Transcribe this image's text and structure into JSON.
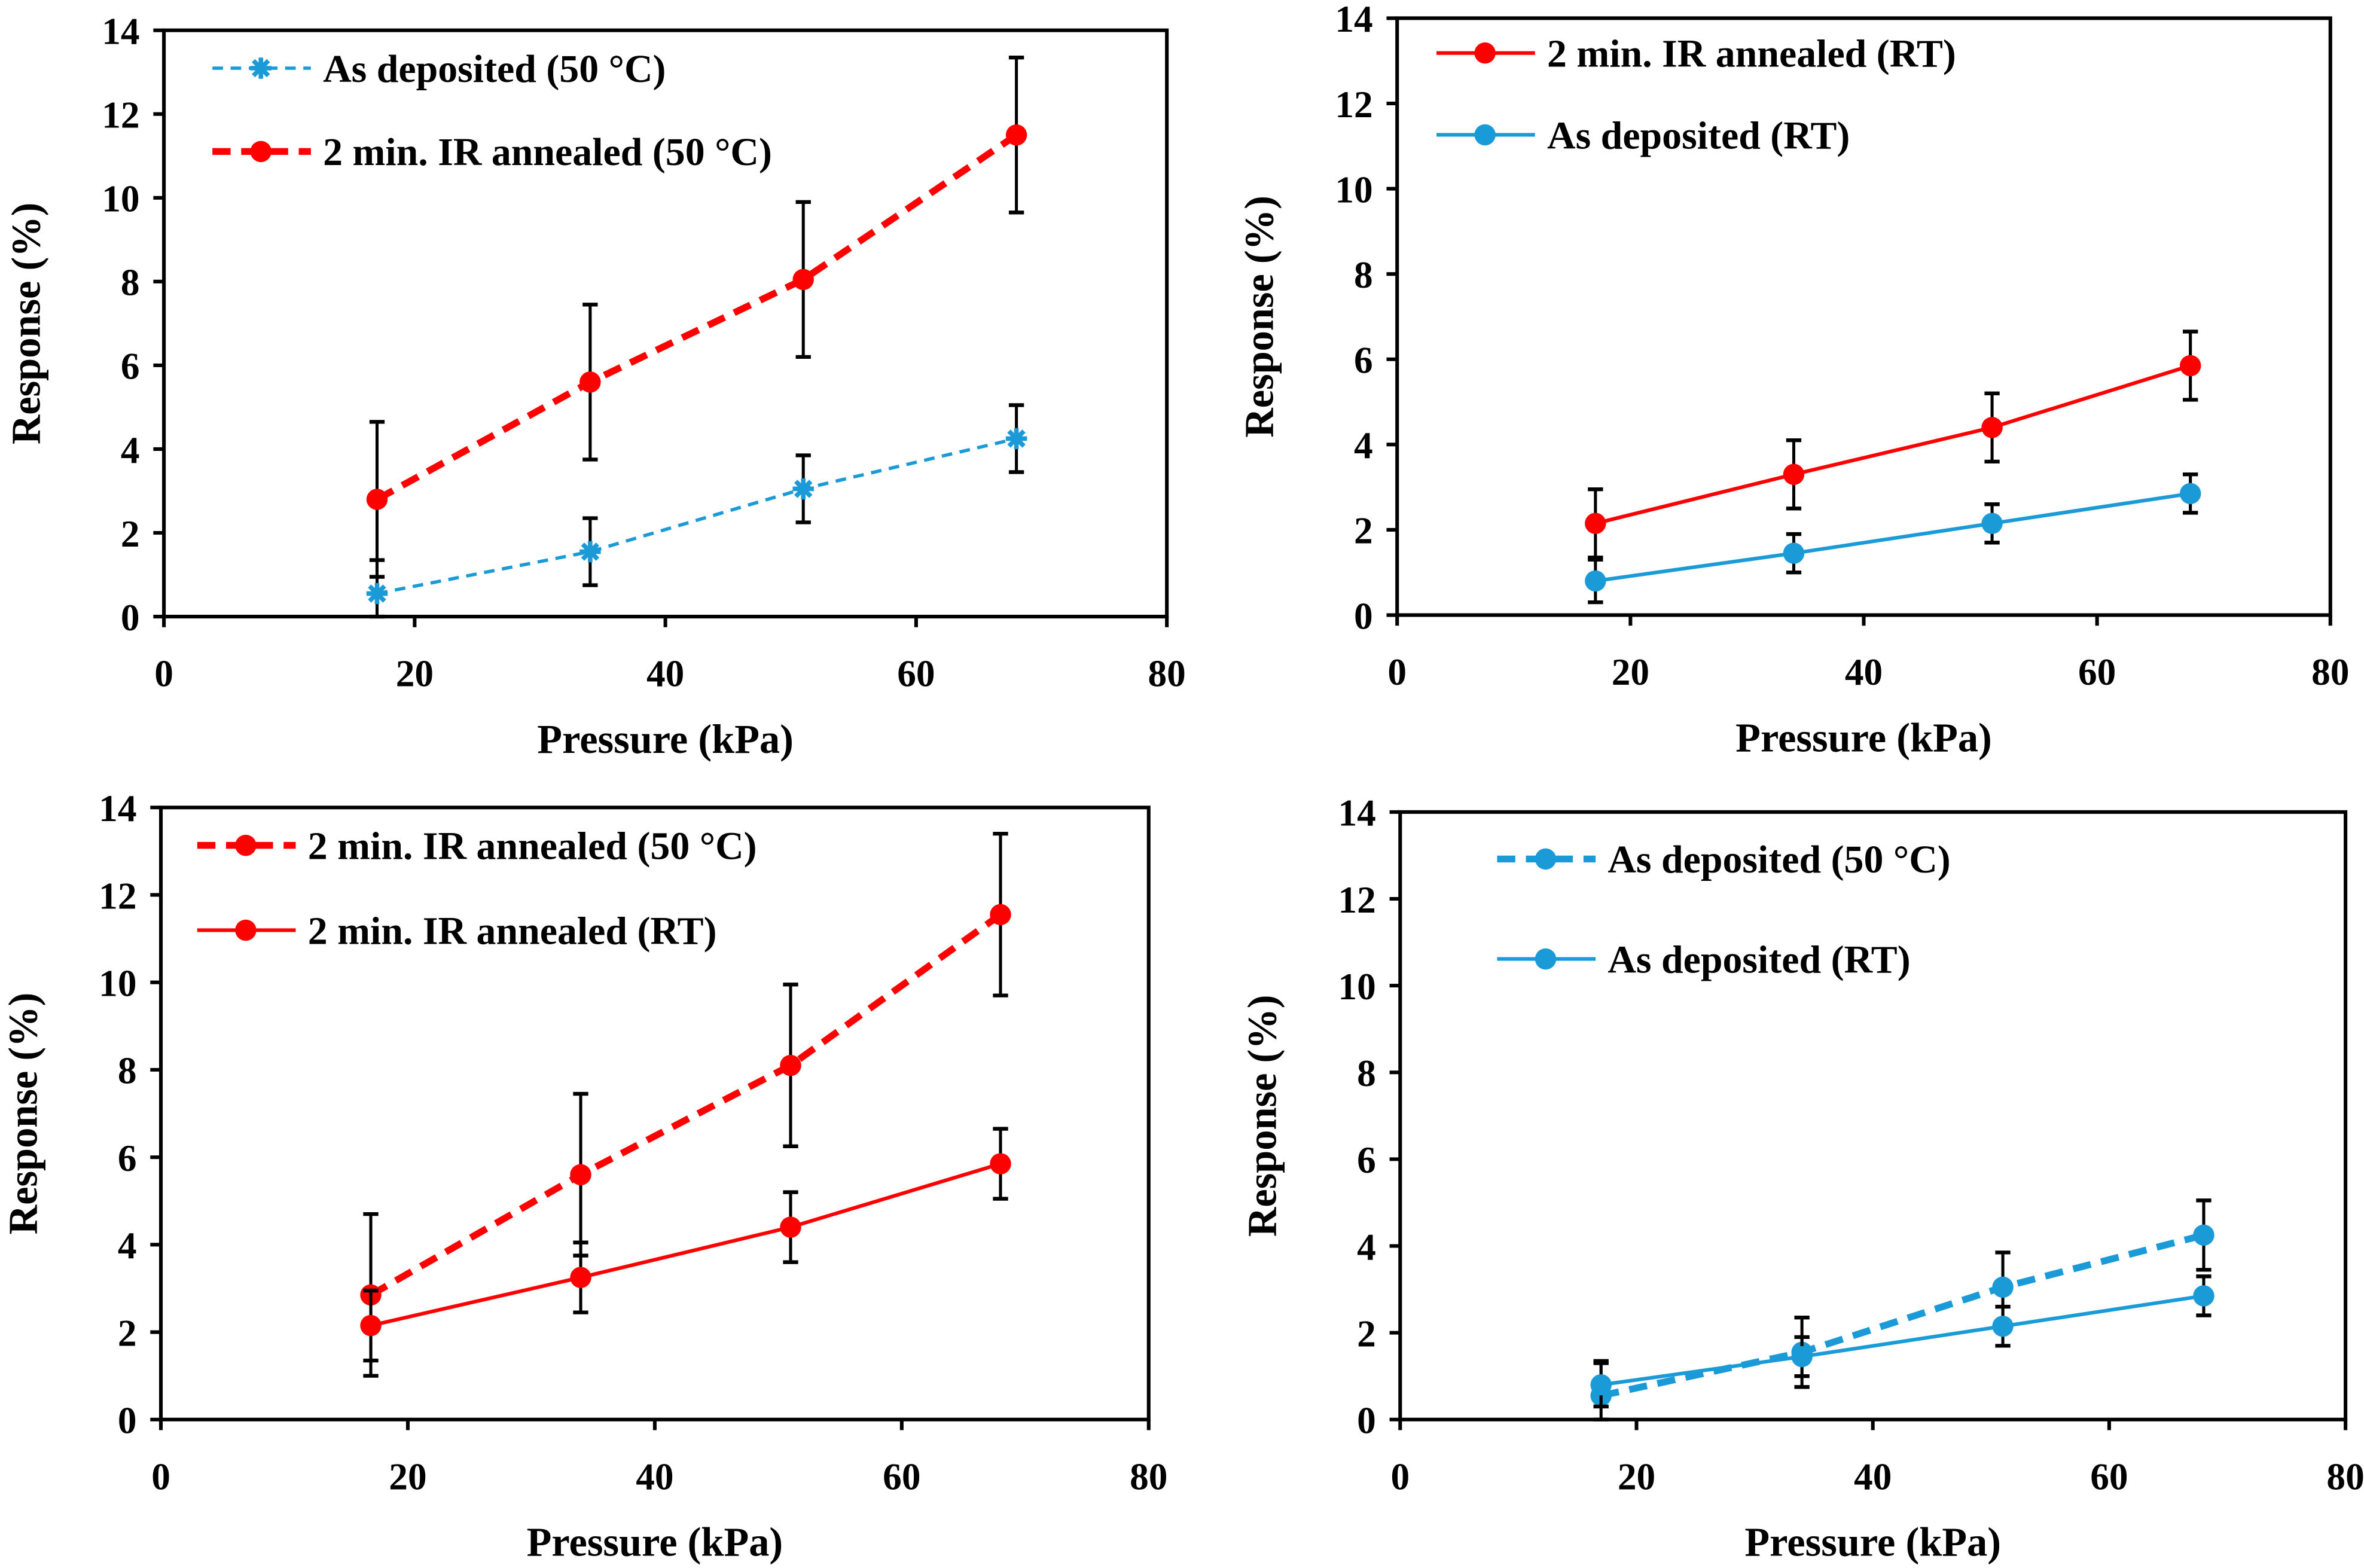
{
  "colors": {
    "red": "#ff0000",
    "blue": "#1a9bd7",
    "axis": "#000000"
  },
  "chart_data": [
    {
      "type": "line",
      "title": "",
      "xlabel": "Pressure (kPa)",
      "ylabel": "Response (%)",
      "xlim": [
        0,
        80
      ],
      "ylim": [
        0,
        14
      ],
      "xticks": [
        "0",
        "20",
        "40",
        "60",
        "80"
      ],
      "yticks": [
        "0",
        "2",
        "4",
        "6",
        "8",
        "10",
        "12",
        "14"
      ],
      "grid": false,
      "legend_position": "top-left",
      "series": [
        {
          "name": "As deposited (50 °C)",
          "color": "#1a9bd7",
          "line": "dashed-thin",
          "marker": "asterisk",
          "x": [
            17,
            34,
            51,
            68
          ],
          "y": [
            0.55,
            1.55,
            3.05,
            4.25
          ],
          "err": [
            0.8,
            0.8,
            0.8,
            0.8
          ]
        },
        {
          "name": "2 min. IR annealed (50 °C)",
          "color": "#ff0000",
          "line": "dashed-thick",
          "marker": "circle",
          "x": [
            17,
            34,
            51,
            68
          ],
          "y": [
            2.8,
            5.6,
            8.05,
            11.5
          ],
          "err": [
            1.85,
            1.85,
            1.85,
            1.85
          ]
        }
      ]
    },
    {
      "type": "line",
      "title": "",
      "xlabel": "Pressure (kPa)",
      "ylabel": "Response (%)",
      "xlim": [
        0,
        80
      ],
      "ylim": [
        0,
        14
      ],
      "xticks": [
        "0",
        "20",
        "40",
        "60",
        "80"
      ],
      "yticks": [
        "0",
        "2",
        "4",
        "6",
        "8",
        "10",
        "12",
        "14"
      ],
      "grid": false,
      "legend_position": "top-left",
      "series": [
        {
          "name": "2 min. IR annealed (RT)",
          "color": "#ff0000",
          "line": "solid",
          "marker": "circle",
          "x": [
            17,
            34,
            51,
            68
          ],
          "y": [
            2.15,
            3.3,
            4.4,
            5.85
          ],
          "err": [
            0.8,
            0.8,
            0.8,
            0.8
          ]
        },
        {
          "name": "As deposited (RT)",
          "color": "#1a9bd7",
          "line": "solid",
          "marker": "circle",
          "x": [
            17,
            34,
            51,
            68
          ],
          "y": [
            0.8,
            1.45,
            2.15,
            2.85
          ],
          "err": [
            0.5,
            0.45,
            0.45,
            0.45
          ]
        }
      ]
    },
    {
      "type": "line",
      "title": "",
      "xlabel": "Pressure (kPa)",
      "ylabel": "Response (%)",
      "xlim": [
        0,
        80
      ],
      "ylim": [
        0,
        14
      ],
      "xticks": [
        "0",
        "20",
        "40",
        "60",
        "80"
      ],
      "yticks": [
        "0",
        "2",
        "4",
        "6",
        "8",
        "10",
        "12",
        "14"
      ],
      "grid": false,
      "legend_position": "top-left",
      "series": [
        {
          "name": "2 min. IR annealed (50 °C)",
          "color": "#ff0000",
          "line": "dashed-thick",
          "marker": "circle",
          "x": [
            17,
            34,
            51,
            68
          ],
          "y": [
            2.85,
            5.6,
            8.1,
            11.55
          ],
          "err": [
            1.85,
            1.85,
            1.85,
            1.85
          ]
        },
        {
          "name": "2 min. IR annealed (RT)",
          "color": "#ff0000",
          "line": "solid",
          "marker": "circle",
          "x": [
            17,
            34,
            51,
            68
          ],
          "y": [
            2.15,
            3.25,
            4.4,
            5.85
          ],
          "err": [
            0.8,
            0.8,
            0.8,
            0.8
          ]
        }
      ]
    },
    {
      "type": "line",
      "title": "",
      "xlabel": "Pressure (kPa)",
      "ylabel": "Response (%)",
      "xlim": [
        0,
        80
      ],
      "ylim": [
        0,
        14
      ],
      "xticks": [
        "0",
        "20",
        "40",
        "60",
        "80"
      ],
      "yticks": [
        "0",
        "2",
        "4",
        "6",
        "8",
        "10",
        "12",
        "14"
      ],
      "grid": false,
      "legend_position": "top-left",
      "series": [
        {
          "name": "As deposited (50 °C)",
          "color": "#1a9bd7",
          "line": "dashed-thick",
          "marker": "circle",
          "x": [
            17,
            34,
            51,
            68
          ],
          "y": [
            0.55,
            1.55,
            3.05,
            4.25
          ],
          "err": [
            0.8,
            0.8,
            0.8,
            0.8
          ]
        },
        {
          "name": "As deposited (RT)",
          "color": "#1a9bd7",
          "line": "solid",
          "marker": "circle",
          "x": [
            17,
            34,
            51,
            68
          ],
          "y": [
            0.8,
            1.45,
            2.15,
            2.85
          ],
          "err": [
            0.5,
            0.45,
            0.45,
            0.45
          ]
        }
      ]
    }
  ]
}
